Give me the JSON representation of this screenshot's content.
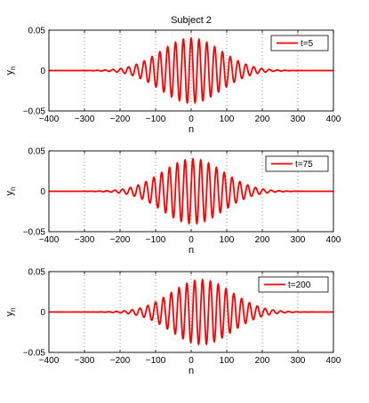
{
  "figure_title": "Subject 2",
  "chart_data": [
    {
      "type": "line",
      "xlabel": "n",
      "ylabel": "y",
      "ylabel_sub": "n",
      "xlim": [
        -400,
        400
      ],
      "ylim": [
        -0.05,
        0.05
      ],
      "xticks": [
        -400,
        -300,
        -200,
        -100,
        0,
        100,
        200,
        300,
        400
      ],
      "yticks": [
        -0.05,
        0,
        0.05
      ],
      "ytick_labels": [
        "−0.05",
        "0",
        "0.05"
      ],
      "xtick_labels": [
        "−400",
        "−300",
        "−200",
        "−100",
        "0",
        "100",
        "200",
        "300",
        "400"
      ],
      "grid": "x-dotted",
      "legend_position": "top-right",
      "series": [
        {
          "name": "t=5",
          "color": "#ff0000",
          "model": {
            "amplitude": 0.04,
            "center": 0,
            "sigma": 85,
            "period": 22,
            "phase_center": 0
          }
        }
      ]
    },
    {
      "type": "line",
      "xlabel": "n",
      "ylabel": "y",
      "ylabel_sub": "n",
      "xlim": [
        -400,
        400
      ],
      "ylim": [
        -0.05,
        0.05
      ],
      "xticks": [
        -400,
        -300,
        -200,
        -100,
        0,
        100,
        200,
        300,
        400
      ],
      "yticks": [
        -0.05,
        0,
        0.05
      ],
      "ytick_labels": [
        "−0.05",
        "0",
        "0.05"
      ],
      "xtick_labels": [
        "−400",
        "−300",
        "−200",
        "−100",
        "0",
        "100",
        "200",
        "300",
        "400"
      ],
      "grid": "x-dotted",
      "legend_position": "top-right",
      "series": [
        {
          "name": "t=75",
          "color": "#ff0000",
          "model": {
            "amplitude": 0.04,
            "center": 5,
            "sigma": 85,
            "period": 22,
            "phase_center": 5
          }
        }
      ]
    },
    {
      "type": "line",
      "xlabel": "n",
      "ylabel": "y",
      "ylabel_sub": "n",
      "xlim": [
        -400,
        400
      ],
      "ylim": [
        -0.05,
        0.05
      ],
      "xticks": [
        -400,
        -300,
        -200,
        -100,
        0,
        100,
        200,
        300,
        400
      ],
      "yticks": [
        -0.05,
        0,
        0.05
      ],
      "ytick_labels": [
        "−0.05",
        "0",
        "0.05"
      ],
      "xtick_labels": [
        "−400",
        "−300",
        "−200",
        "−100",
        "0",
        "100",
        "200",
        "300",
        "400"
      ],
      "grid": "x-dotted",
      "legend_position": "top-right",
      "series": [
        {
          "name": "t=200",
          "color": "#ff0000",
          "model": {
            "amplitude": 0.04,
            "center": 30,
            "sigma": 85,
            "period": 22,
            "phase_center": 10
          }
        }
      ]
    }
  ]
}
